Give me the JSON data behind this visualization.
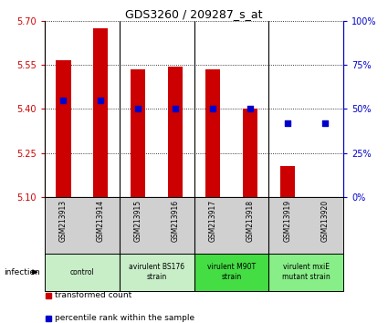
{
  "title": "GDS3260 / 209287_s_at",
  "samples": [
    "GSM213913",
    "GSM213914",
    "GSM213915",
    "GSM213916",
    "GSM213917",
    "GSM213918",
    "GSM213919",
    "GSM213920"
  ],
  "bar_values": [
    5.565,
    5.675,
    5.535,
    5.545,
    5.535,
    5.4,
    5.205,
    5.1
  ],
  "bar_base": 5.1,
  "percentile_values": [
    55,
    55,
    50,
    50,
    50,
    50,
    42,
    42
  ],
  "ylim_left": [
    5.1,
    5.7
  ],
  "ylim_right": [
    0,
    100
  ],
  "yticks_left": [
    5.1,
    5.25,
    5.4,
    5.55,
    5.7
  ],
  "yticks_right": [
    0,
    25,
    50,
    75,
    100
  ],
  "bar_color": "#cc0000",
  "dot_color": "#0000cc",
  "bg_plot": "#ffffff",
  "bg_sample_row": "#d0d0d0",
  "groups": [
    {
      "label": "control",
      "start": 0,
      "end": 2,
      "color": "#c8eec8"
    },
    {
      "label": "avirulent BS176\nstrain",
      "start": 2,
      "end": 4,
      "color": "#c8eec8"
    },
    {
      "label": "virulent M90T\nstrain",
      "start": 4,
      "end": 6,
      "color": "#44dd44"
    },
    {
      "label": "virulent mxiE\nmutant strain",
      "start": 6,
      "end": 8,
      "color": "#88ee88"
    }
  ],
  "infection_label": "infection",
  "legend_bar_label": "transformed count",
  "legend_dot_label": "percentile rank within the sample",
  "bar_width": 0.4
}
